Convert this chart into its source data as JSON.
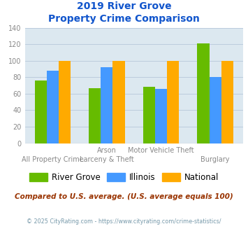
{
  "title_line1": "2019 River Grove",
  "title_line2": "Property Crime Comparison",
  "river_grove": [
    76,
    67,
    68,
    121
  ],
  "illinois": [
    88,
    92,
    66,
    80
  ],
  "national": [
    100,
    100,
    100,
    100
  ],
  "bar_colors": [
    "#66bb00",
    "#4499ff",
    "#ffaa00"
  ],
  "legend_labels": [
    "River Grove",
    "Illinois",
    "National"
  ],
  "ylim": [
    0,
    140
  ],
  "yticks": [
    0,
    20,
    40,
    60,
    80,
    100,
    120,
    140
  ],
  "bg_color": "#dce8f0",
  "title_color": "#1155cc",
  "axis_color": "#888888",
  "note_text": "Compared to U.S. average. (U.S. average equals 100)",
  "note_color": "#993300",
  "footer_text": "© 2025 CityRating.com - https://www.cityrating.com/crime-statistics/",
  "footer_color": "#7799aa",
  "grid_color": "#bbccdd",
  "top_labels": [
    "",
    "Arson",
    "Motor Vehicle Theft",
    ""
  ],
  "bottom_labels": [
    "All Property Crime",
    "Larceny & Theft",
    "",
    "Burglary"
  ]
}
